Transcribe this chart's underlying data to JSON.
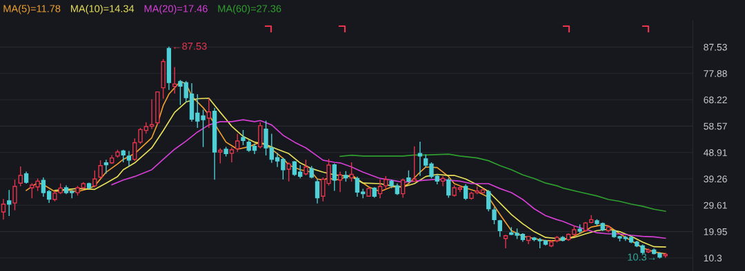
{
  "chart_data": {
    "type": "candlestick",
    "categories": [
      null,
      null,
      null,
      null,
      null,
      null,
      null,
      null,
      null,
      null,
      null,
      null,
      null,
      null,
      null,
      null,
      null,
      null,
      null,
      null,
      null,
      null,
      null,
      null,
      null,
      null,
      null,
      null,
      null,
      null,
      null,
      null,
      null,
      null,
      null,
      null,
      null,
      null,
      null,
      null,
      null,
      null,
      null,
      null,
      null,
      null,
      null,
      null,
      null,
      null,
      null,
      null,
      null,
      null,
      null,
      null,
      null,
      null,
      null,
      null,
      null,
      null,
      null,
      null,
      null,
      null,
      null,
      null,
      null,
      null,
      null,
      null,
      null,
      null,
      null,
      null,
      null,
      null,
      null,
      null,
      null,
      null,
      null,
      null,
      null,
      null,
      null,
      null,
      null,
      null,
      null,
      null,
      null,
      null,
      null,
      null,
      null,
      null,
      null,
      null,
      null,
      null,
      null,
      null,
      null,
      null,
      null,
      null,
      null,
      null,
      null,
      null,
      null,
      null,
      null,
      null,
      null
    ],
    "ohlc": [
      [
        27.1,
        31.7,
        24.5,
        30.0
      ],
      [
        31.2,
        35.0,
        25.8,
        30.0
      ],
      [
        30.4,
        38.8,
        27.9,
        36.5
      ],
      [
        37.7,
        43.6,
        36.7,
        40.5
      ],
      [
        41.1,
        41.7,
        37.7,
        38.0
      ],
      [
        36.0,
        37.5,
        32.3,
        37.0
      ],
      [
        36.3,
        39.2,
        35.0,
        38.4
      ],
      [
        38.7,
        39.6,
        32.9,
        34.2
      ],
      [
        34.6,
        35.0,
        30.6,
        31.8
      ],
      [
        31.7,
        34.6,
        31.2,
        34.0
      ],
      [
        34.2,
        37.4,
        33.8,
        35.9
      ],
      [
        36.0,
        36.7,
        33.8,
        34.2
      ],
      [
        34.6,
        35.0,
        32.3,
        34.2
      ],
      [
        34.2,
        36.5,
        33.3,
        36.0
      ],
      [
        36.0,
        37.9,
        35.8,
        37.5
      ],
      [
        37.5,
        37.7,
        35.7,
        36.0
      ],
      [
        36.7,
        42.2,
        36.3,
        39.2
      ],
      [
        39.9,
        45.9,
        39.6,
        44.1
      ],
      [
        45.1,
        46.1,
        41.3,
        44.4
      ],
      [
        45.1,
        47.8,
        44.9,
        46.9
      ],
      [
        47.6,
        49.7,
        47.2,
        49.1
      ],
      [
        49.5,
        49.7,
        45.5,
        48.0
      ],
      [
        47.6,
        49.3,
        44.1,
        46.1
      ],
      [
        46.4,
        53.9,
        46.0,
        52.5
      ],
      [
        52.7,
        57.7,
        52.2,
        57.3
      ],
      [
        57.0,
        59.8,
        56.0,
        58.4
      ],
      [
        58.5,
        68.2,
        57.7,
        59.1
      ],
      [
        59.8,
        71.1,
        59.4,
        71.1
      ],
      [
        72.6,
        82.9,
        68.8,
        82.2
      ],
      [
        87.0,
        87.53,
        72.0,
        74.5
      ],
      [
        73.1,
        80.0,
        70.7,
        74.0
      ],
      [
        74.9,
        75.3,
        66.5,
        73.2
      ],
      [
        74.5,
        74.9,
        67.4,
        69.0
      ],
      [
        70.3,
        74.1,
        60.4,
        61.1
      ],
      [
        63.3,
        70.1,
        58.1,
        60.4
      ],
      [
        62.3,
        64.4,
        51.1,
        60.9
      ],
      [
        61.5,
        68.6,
        58.1,
        63.8
      ],
      [
        64.0,
        65.1,
        39.1,
        49.1
      ],
      [
        49.1,
        50.3,
        45.1,
        49.7
      ],
      [
        50.1,
        50.8,
        47.6,
        48.5
      ],
      [
        48.6,
        50.6,
        45.5,
        49.9
      ],
      [
        50.3,
        55.6,
        49.3,
        53.1
      ],
      [
        54.4,
        57.0,
        51.8,
        53.3
      ],
      [
        52.7,
        53.3,
        49.3,
        49.7
      ],
      [
        51.2,
        52.0,
        48.5,
        49.7
      ],
      [
        51.0,
        59.8,
        50.6,
        58.7
      ],
      [
        57.5,
        60.4,
        48.0,
        50.6
      ],
      [
        50.6,
        55.6,
        45.3,
        46.4
      ],
      [
        47.0,
        48.6,
        43.8,
        45.8
      ],
      [
        46.4,
        46.8,
        39.2,
        42.6
      ],
      [
        42.8,
        45.1,
        38.5,
        44.7
      ],
      [
        45.5,
        45.6,
        40.5,
        40.9
      ],
      [
        41.7,
        44.1,
        39.6,
        40.2
      ],
      [
        41.1,
        46.1,
        40.7,
        43.6
      ],
      [
        43.0,
        43.8,
        39.6,
        39.9
      ],
      [
        38.2,
        39.1,
        30.4,
        32.3
      ],
      [
        32.9,
        39.6,
        31.2,
        39.1
      ],
      [
        37.6,
        46.4,
        37.0,
        44.3
      ],
      [
        44.4,
        44.7,
        35.0,
        38.8
      ],
      [
        38.8,
        41.7,
        34.6,
        40.7
      ],
      [
        40.5,
        41.9,
        38.4,
        39.6
      ],
      [
        39.6,
        45.1,
        38.4,
        40.9
      ],
      [
        39.4,
        39.9,
        32.9,
        34.4
      ],
      [
        34.4,
        35.4,
        32.3,
        33.8
      ],
      [
        32.9,
        36.0,
        32.9,
        35.7
      ],
      [
        35.9,
        36.0,
        32.5,
        32.9
      ],
      [
        33.8,
        38.8,
        32.3,
        36.5
      ],
      [
        36.7,
        40.1,
        35.7,
        39.0
      ],
      [
        38.4,
        38.8,
        36.0,
        36.7
      ],
      [
        36.7,
        37.4,
        33.5,
        33.8
      ],
      [
        33.8,
        39.2,
        32.5,
        38.8
      ],
      [
        39.6,
        42.2,
        38.0,
        38.4
      ],
      [
        38.4,
        51.0,
        38.4,
        39.2
      ],
      [
        48.5,
        52.7,
        40.5,
        47.6
      ],
      [
        46.6,
        48.0,
        43.6,
        44.3
      ],
      [
        44.7,
        45.1,
        39.6,
        40.1
      ],
      [
        40.2,
        40.7,
        37.4,
        38.4
      ],
      [
        38.4,
        40.1,
        36.7,
        39.4
      ],
      [
        38.8,
        39.4,
        32.5,
        33.3
      ],
      [
        33.2,
        36.7,
        32.9,
        36.0
      ],
      [
        35.4,
        36.7,
        34.6,
        36.0
      ],
      [
        36.5,
        37.1,
        31.7,
        32.1
      ],
      [
        32.1,
        34.4,
        31.8,
        34.0
      ],
      [
        34.2,
        36.3,
        33.8,
        34.8
      ],
      [
        34.2,
        35.7,
        34.2,
        35.2
      ],
      [
        34.6,
        35.0,
        27.5,
        28.3
      ],
      [
        27.9,
        28.7,
        22.8,
        24.3
      ],
      [
        23.9,
        24.0,
        18.2,
        20.3
      ],
      [
        17.4,
        18.6,
        14.0,
        18.4
      ],
      [
        19.5,
        21.4,
        18.9,
        18.9
      ],
      [
        19.3,
        20.9,
        17.4,
        18.6
      ],
      [
        18.9,
        19.2,
        16.4,
        17.0
      ],
      [
        16.7,
        18.2,
        15.5,
        18.2
      ],
      [
        17.6,
        17.8,
        16.6,
        17.0
      ],
      [
        17.0,
        17.4,
        14.0,
        16.6
      ],
      [
        16.6,
        16.7,
        15.0,
        15.3
      ],
      [
        14.7,
        16.6,
        14.4,
        16.1
      ],
      [
        16.6,
        18.2,
        16.1,
        17.8
      ],
      [
        17.8,
        18.1,
        16.5,
        16.7
      ],
      [
        17.0,
        19.1,
        16.7,
        18.9
      ],
      [
        18.9,
        22.0,
        18.6,
        20.6
      ],
      [
        20.8,
        22.4,
        19.5,
        20.1
      ],
      [
        20.3,
        23.3,
        20.1,
        23.1
      ],
      [
        23.3,
        25.8,
        23.1,
        24.3
      ],
      [
        23.9,
        24.3,
        22.3,
        22.9
      ],
      [
        22.9,
        23.1,
        20.3,
        20.6
      ],
      [
        20.3,
        22.0,
        19.8,
        21.6
      ],
      [
        20.1,
        20.3,
        17.8,
        18.1
      ],
      [
        18.1,
        18.2,
        16.5,
        17.6
      ],
      [
        17.8,
        18.2,
        16.7,
        17.4
      ],
      [
        17.8,
        18.1,
        15.9,
        16.1
      ],
      [
        16.1,
        16.4,
        14.4,
        14.7
      ],
      [
        14.7,
        15.0,
        11.9,
        12.3
      ],
      [
        12.5,
        13.6,
        12.2,
        13.2
      ],
      [
        13.2,
        13.6,
        11.7,
        11.9
      ],
      [
        11.9,
        12.2,
        10.3,
        10.6
      ],
      [
        11.1,
        12.0,
        10.5,
        11.6
      ]
    ],
    "series": [
      {
        "name": "MA(5)=11.78",
        "type": "line",
        "color": "#f0a030",
        "values": [
          null,
          null,
          null,
          null,
          35.0,
          null,
          37.9,
          37.1,
          null,
          34.6,
          null,
          35.2,
          null,
          34.6,
          null,
          35.7,
          36.7,
          null,
          41.7,
          null,
          44.7,
          46.4,
          null,
          48.5,
          null,
          null,
          54.3,
          59.4,
          66.1,
          70.3,
          null,
          74.9,
          74.1,
          69.5,
          null,
          65.3,
          62.7,
          null,
          null,
          52.7,
          51.4,
          50.1,
          null,
          51.0,
          null,
          52.7,
          51.8,
          50.1,
          null,
          46.8,
          44.3,
          null,
          42.6,
          null,
          41.7,
          39.2,
          38.8,
          39.6,
          38.8,
          39.2,
          null,
          40.7,
          39.2,
          null,
          36.3,
          null,
          34.6,
          null,
          36.3,
          null,
          36.3,
          37.5,
          null,
          41.7,
          43.6,
          null,
          43.4,
          null,
          40.1,
          37.5,
          null,
          35.9,
          null,
          34.6,
          null,
          32.5,
          null,
          26.2,
          null,
          20.3,
          null,
          18.2,
          null,
          17.4,
          null,
          16.6,
          null,
          16.6,
          16.9,
          null,
          18.2,
          null,
          20.3,
          21.6,
          null,
          22.4,
          22.0,
          null,
          19.1,
          null,
          16.6,
          null,
          14.0,
          null,
          12.5,
          null,
          11.8
        ]
      },
      {
        "name": "MA(10)=14.34",
        "type": "line",
        "color": "#e8e05a",
        "values": [
          null,
          null,
          null,
          null,
          null,
          null,
          null,
          null,
          null,
          35.0,
          null,
          null,
          null,
          35.7,
          null,
          null,
          35.4,
          null,
          37.7,
          null,
          40.1,
          42.6,
          null,
          45.1,
          null,
          null,
          50.6,
          null,
          56.9,
          null,
          63.6,
          null,
          67.4,
          null,
          68.6,
          null,
          68.8,
          null,
          63.6,
          61.1,
          58.5,
          null,
          54.8,
          null,
          52.7,
          null,
          51.8,
          null,
          50.1,
          null,
          48.5,
          null,
          45.1,
          null,
          43.0,
          null,
          41.7,
          null,
          40.7,
          40.5,
          null,
          40.1,
          null,
          37.7,
          null,
          null,
          37.5,
          null,
          36.7,
          null,
          36.3,
          null,
          37.5,
          null,
          40.1,
          null,
          40.9,
          null,
          40.5,
          40.5,
          null,
          39.2,
          null,
          37.1,
          null,
          34.6,
          null,
          30.4,
          null,
          26.2,
          null,
          22.8,
          null,
          19.9,
          null,
          17.8,
          null,
          17.4,
          17.1,
          null,
          17.8,
          null,
          19.1,
          null,
          20.3,
          null,
          20.8,
          null,
          19.9,
          null,
          18.2,
          null,
          16.1,
          null,
          14.4,
          null,
          14.3
        ]
      },
      {
        "name": "MA(20)=17.46",
        "type": "line",
        "color": "#d63fd6",
        "values": [
          null,
          null,
          null,
          null,
          null,
          null,
          null,
          null,
          null,
          null,
          null,
          null,
          null,
          null,
          null,
          null,
          null,
          null,
          null,
          37.1,
          null,
          38.8,
          null,
          40.1,
          null,
          null,
          42.6,
          null,
          46.4,
          null,
          50.1,
          null,
          53.1,
          null,
          56.4,
          null,
          59.0,
          null,
          60.2,
          60.2,
          60.2,
          null,
          60.9,
          null,
          60.2,
          60.6,
          null,
          59.0,
          null,
          55.2,
          null,
          52.7,
          null,
          50.6,
          null,
          47.6,
          46.1,
          null,
          45.3,
          45.1,
          null,
          43.6,
          null,
          41.7,
          null,
          null,
          39.4,
          null,
          38.8,
          null,
          38.0,
          null,
          38.4,
          null,
          38.8,
          null,
          39.1,
          null,
          38.8,
          null,
          38.4,
          null,
          37.5,
          null,
          null,
          37.5,
          null,
          35.7,
          null,
          34.2,
          null,
          31.7,
          null,
          28.3,
          null,
          25.8,
          null,
          24.3,
          23.7,
          null,
          22.0,
          null,
          20.8,
          null,
          19.5,
          null,
          19.1,
          null,
          19.1,
          null,
          18.6,
          null,
          18.2,
          null,
          18.0,
          null,
          17.5
        ]
      },
      {
        "name": "MA(60)=27.36",
        "type": "line",
        "color": "#2e9e2e",
        "values": [
          null,
          null,
          null,
          null,
          null,
          null,
          null,
          null,
          null,
          null,
          null,
          null,
          null,
          null,
          null,
          null,
          null,
          null,
          null,
          null,
          null,
          null,
          null,
          null,
          null,
          null,
          null,
          null,
          null,
          null,
          null,
          null,
          null,
          null,
          null,
          null,
          null,
          null,
          null,
          null,
          null,
          null,
          null,
          null,
          null,
          null,
          null,
          null,
          null,
          null,
          null,
          null,
          null,
          null,
          null,
          null,
          null,
          null,
          null,
          47.5,
          null,
          47.9,
          null,
          47.6,
          null,
          null,
          null,
          47.6,
          null,
          null,
          47.6,
          null,
          48.0,
          null,
          48.0,
          null,
          null,
          null,
          48.3,
          null,
          47.6,
          null,
          null,
          46.9,
          null,
          45.9,
          null,
          44.1,
          null,
          42.6,
          null,
          40.7,
          null,
          39.4,
          null,
          37.7,
          null,
          36.7,
          35.9,
          null,
          null,
          34.4,
          null,
          null,
          33.0,
          null,
          31.7,
          null,
          31.0,
          null,
          30.0,
          null,
          29.2,
          null,
          28.1,
          null,
          27.4
        ]
      }
    ],
    "ylim": [
      5.5,
      97.2
    ],
    "yticks": [
      {
        "value": 10.3,
        "label": "10.3"
      },
      19.95,
      29.61,
      39.26,
      48.91,
      58.57,
      68.22,
      77.88,
      87.53
    ],
    "grid": "y",
    "legend": "top left",
    "annotations": [
      "←87.53",
      "10.3→"
    ]
  }
}
